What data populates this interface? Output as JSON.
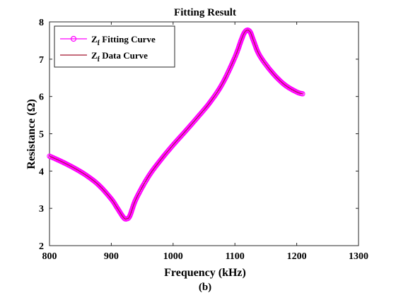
{
  "chart_data": {
    "type": "line",
    "title": "Fitting Result",
    "xlabel": "Frequency (kHz)",
    "ylabel": "Resistance (Ω)",
    "caption": "(b)",
    "xlim": [
      800,
      1300
    ],
    "ylim": [
      2,
      8
    ],
    "xticks": [
      "800",
      "900",
      "1000",
      "1100",
      "1200",
      "1300"
    ],
    "yticks": [
      "2",
      "3",
      "4",
      "5",
      "6",
      "7",
      "8"
    ],
    "grid": false,
    "legend_position": "top-left",
    "series": [
      {
        "name_main": "Z",
        "name_sub": "f",
        "name_rest": " Fitting Curve",
        "color": "#ff00ff",
        "style": "line-with-circle-markers",
        "x": [
          800,
          820,
          840,
          860,
          880,
          900,
          910,
          920,
          925,
          930,
          940,
          960,
          980,
          1000,
          1020,
          1040,
          1060,
          1080,
          1100,
          1110,
          1115,
          1120,
          1125,
          1130,
          1140,
          1160,
          1180,
          1200,
          1210
        ],
        "y": [
          4.4,
          4.25,
          4.08,
          3.88,
          3.62,
          3.25,
          3.0,
          2.75,
          2.72,
          2.8,
          3.25,
          3.85,
          4.3,
          4.7,
          5.07,
          5.45,
          5.85,
          6.35,
          7.05,
          7.5,
          7.7,
          7.78,
          7.72,
          7.5,
          7.1,
          6.65,
          6.32,
          6.12,
          6.07
        ]
      },
      {
        "name_main": "Z",
        "name_sub": "f",
        "name_rest": " Data Curve",
        "color": "#a2142f",
        "style": "line",
        "x": [
          800,
          820,
          840,
          860,
          880,
          900,
          910,
          920,
          925,
          930,
          940,
          960,
          980,
          1000,
          1020,
          1040,
          1060,
          1080,
          1100,
          1110,
          1115,
          1120,
          1125,
          1130,
          1140,
          1160,
          1180,
          1200,
          1210
        ],
        "y": [
          4.4,
          4.25,
          4.08,
          3.88,
          3.62,
          3.25,
          3.0,
          2.75,
          2.72,
          2.8,
          3.25,
          3.85,
          4.3,
          4.7,
          5.07,
          5.45,
          5.85,
          6.35,
          7.05,
          7.5,
          7.7,
          7.78,
          7.72,
          7.5,
          7.1,
          6.65,
          6.32,
          6.12,
          6.07
        ]
      }
    ]
  }
}
